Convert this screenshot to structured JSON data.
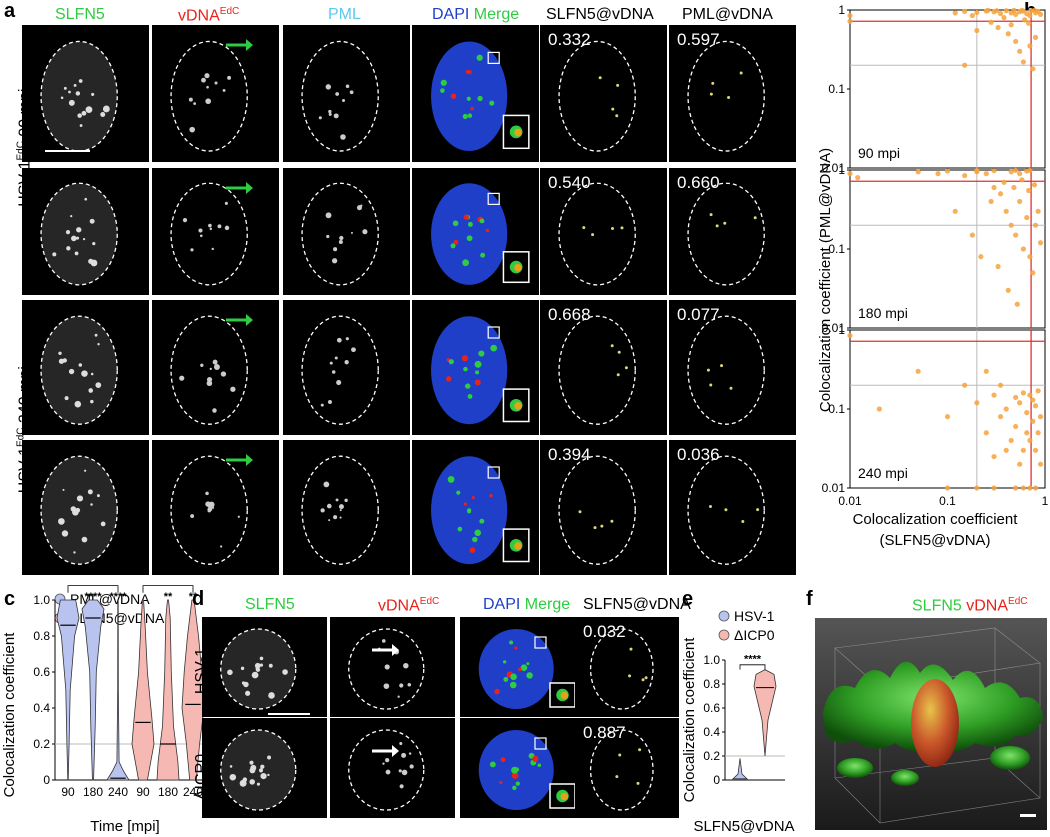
{
  "labels": {
    "a": "a",
    "b": "b",
    "c": "c",
    "d": "d",
    "e": "e",
    "f": "f"
  },
  "panel_a": {
    "headers": [
      "SLFN5",
      "vDNA",
      "PML",
      "DAPI",
      "Merge",
      "SLFN5@vDNA",
      "PML@vDNA"
    ],
    "vdna_super": "EdC",
    "colors": {
      "slfn5": "#2ecc40",
      "vdna": "#e8231b",
      "pml": "#5bc8f0",
      "dapi": "#1f3fc8",
      "merge_g": "#2ecc40",
      "merge_c": "#5bc8f0"
    },
    "group_labels": [
      {
        "pre": "HSV-1",
        "sup": "EdC",
        "post": " 90 mpi"
      },
      {
        "pre": "HSV-1",
        "sup": "EdC",
        "post": " 240 mpi"
      }
    ],
    "rows": [
      {
        "slfn5_vdna": "0.332",
        "pml_vdna": "0.597"
      },
      {
        "slfn5_vdna": "0.540",
        "pml_vdna": "0.660"
      },
      {
        "slfn5_vdna": "0.668",
        "pml_vdna": "0.077"
      },
      {
        "slfn5_vdna": "0.394",
        "pml_vdna": "0.036"
      }
    ]
  },
  "panel_b": {
    "ylabel": "Colocalization coefficient (PML@vDNA)",
    "xlabel1": "Colocalization coefficient",
    "xlabel2": "(SLFN5@vDNA)",
    "ticks_y": [
      "1",
      "0.1",
      "0.01"
    ],
    "ticks_x": [
      "0.01",
      "0.1",
      "1"
    ],
    "subplots": [
      {
        "label": "90 mpi"
      },
      {
        "label": "180 mpi"
      },
      {
        "label": "240 mpi"
      }
    ]
  },
  "panel_c": {
    "legend": [
      "PML@vDNA",
      "SLFN5@vDNA"
    ],
    "ylabel": "Colocalization coefficient",
    "xlabel": "Time [mpi]",
    "xticks": [
      "90",
      "180",
      "240",
      "90",
      "180",
      "240"
    ],
    "yticks": [
      "0",
      "0.2",
      "0.4",
      "0.6",
      "0.8",
      "1.0"
    ],
    "sig": [
      "****",
      "****",
      "**",
      "**"
    ],
    "colors": {
      "pml": "#b9c3f0",
      "slfn5": "#f5b8b3"
    }
  },
  "panel_d": {
    "headers": [
      "SLFN5",
      "vDNA",
      "DAPI",
      "Merge",
      "SLFN5@vDNA"
    ],
    "vdna_super": "EdC",
    "rows": [
      {
        "label": "HSV-1",
        "value": "0.032"
      },
      {
        "label": "ΔICP0",
        "value": "0.887"
      }
    ]
  },
  "panel_e": {
    "legend": [
      "HSV-1",
      "ΔICP0"
    ],
    "ylabel": "Colocalization coefficient",
    "xlabel": "SLFN5@vDNA",
    "yticks": [
      "0",
      "0.2",
      "0.4",
      "0.6",
      "0.8",
      "1.0"
    ],
    "sig": "****"
  },
  "panel_f": {
    "t1": "SLFN5",
    "t2": "vDNA",
    "sup": "EdC"
  },
  "chart_data": [
    {
      "type": "scatter",
      "title": "90 mpi",
      "xlabel": "Colocalization coefficient (SLFN5@vDNA)",
      "ylabel": "Colocalization coefficient (PML@vDNA)",
      "x_scale": "log",
      "y_scale": "log",
      "xlim": [
        0.01,
        1
      ],
      "ylim": [
        0.01,
        1
      ],
      "points": [
        [
          0.01,
          0.85
        ],
        [
          0.01,
          0.72
        ],
        [
          0.3,
          0.95
        ],
        [
          0.35,
          0.9
        ],
        [
          0.4,
          0.98
        ],
        [
          0.45,
          0.92
        ],
        [
          0.5,
          0.88
        ],
        [
          0.55,
          0.95
        ],
        [
          0.6,
          0.97
        ],
        [
          0.65,
          0.9
        ],
        [
          0.7,
          0.85
        ],
        [
          0.72,
          0.98
        ],
        [
          0.8,
          0.92
        ],
        [
          0.85,
          0.96
        ],
        [
          0.9,
          0.88
        ],
        [
          0.25,
          0.97
        ],
        [
          0.2,
          0.93
        ],
        [
          0.15,
          0.96
        ],
        [
          0.18,
          0.85
        ],
        [
          0.12,
          0.92
        ],
        [
          0.28,
          0.7
        ],
        [
          0.33,
          0.6
        ],
        [
          0.42,
          0.5
        ],
        [
          0.5,
          0.4
        ],
        [
          0.55,
          0.3
        ],
        [
          0.6,
          0.22
        ],
        [
          0.7,
          0.35
        ],
        [
          0.75,
          0.18
        ],
        [
          0.8,
          0.45
        ],
        [
          0.2,
          0.55
        ],
        [
          0.15,
          0.2
        ],
        [
          0.45,
          0.65
        ],
        [
          0.38,
          0.8
        ],
        [
          0.62,
          0.75
        ],
        [
          0.68,
          0.68
        ],
        [
          0.32,
          0.98
        ],
        [
          0.48,
          0.99
        ],
        [
          0.58,
          0.99
        ],
        [
          0.26,
          0.99
        ],
        [
          0.78,
          0.99
        ]
      ]
    },
    {
      "type": "scatter",
      "title": "180 mpi",
      "xlabel": "Colocalization coefficient (SLFN5@vDNA)",
      "ylabel": "Colocalization coefficient (PML@vDNA)",
      "x_scale": "log",
      "y_scale": "log",
      "xlim": [
        0.01,
        1
      ],
      "ylim": [
        0.01,
        1
      ],
      "points": [
        [
          0.01,
          0.9
        ],
        [
          0.012,
          0.8
        ],
        [
          0.05,
          0.95
        ],
        [
          0.08,
          0.9
        ],
        [
          0.1,
          0.97
        ],
        [
          0.15,
          0.85
        ],
        [
          0.2,
          0.95
        ],
        [
          0.25,
          0.9
        ],
        [
          0.3,
          0.6
        ],
        [
          0.35,
          0.5
        ],
        [
          0.4,
          0.3
        ],
        [
          0.45,
          0.2
        ],
        [
          0.5,
          0.15
        ],
        [
          0.55,
          0.4
        ],
        [
          0.6,
          0.1
        ],
        [
          0.65,
          0.25
        ],
        [
          0.7,
          0.08
        ],
        [
          0.75,
          0.05
        ],
        [
          0.8,
          0.2
        ],
        [
          0.85,
          0.3
        ],
        [
          0.9,
          0.12
        ],
        [
          0.3,
          0.98
        ],
        [
          0.45,
          0.95
        ],
        [
          0.55,
          0.9
        ],
        [
          0.65,
          0.97
        ],
        [
          0.12,
          0.3
        ],
        [
          0.18,
          0.15
        ],
        [
          0.22,
          0.08
        ],
        [
          0.28,
          0.4
        ],
        [
          0.38,
          0.7
        ],
        [
          0.48,
          0.6
        ],
        [
          0.58,
          0.75
        ],
        [
          0.68,
          0.55
        ],
        [
          0.78,
          0.65
        ],
        [
          0.42,
          0.03
        ],
        [
          0.52,
          0.02
        ],
        [
          0.33,
          0.06
        ],
        [
          0.7,
          0.99
        ],
        [
          0.5,
          0.99
        ],
        [
          0.2,
          0.99
        ]
      ]
    },
    {
      "type": "scatter",
      "title": "240 mpi",
      "xlabel": "Colocalization coefficient (SLFN5@vDNA)",
      "ylabel": "Colocalization coefficient (PML@vDNA)",
      "x_scale": "log",
      "y_scale": "log",
      "xlim": [
        0.01,
        1
      ],
      "ylim": [
        0.01,
        1
      ],
      "points": [
        [
          0.01,
          0.85
        ],
        [
          0.02,
          0.1
        ],
        [
          0.05,
          0.3
        ],
        [
          0.1,
          0.08
        ],
        [
          0.15,
          0.2
        ],
        [
          0.2,
          0.12
        ],
        [
          0.25,
          0.05
        ],
        [
          0.3,
          0.15
        ],
        [
          0.35,
          0.08
        ],
        [
          0.4,
          0.1
        ],
        [
          0.45,
          0.04
        ],
        [
          0.5,
          0.06
        ],
        [
          0.55,
          0.12
        ],
        [
          0.6,
          0.03
        ],
        [
          0.65,
          0.09
        ],
        [
          0.7,
          0.15
        ],
        [
          0.75,
          0.07
        ],
        [
          0.8,
          0.11
        ],
        [
          0.85,
          0.05
        ],
        [
          0.9,
          0.08
        ],
        [
          0.5,
          0.14
        ],
        [
          0.6,
          0.16
        ],
        [
          0.7,
          0.04
        ],
        [
          0.65,
          0.05
        ],
        [
          0.75,
          0.13
        ],
        [
          0.55,
          0.02
        ],
        [
          0.4,
          0.03
        ],
        [
          0.3,
          0.025
        ],
        [
          0.35,
          0.2
        ],
        [
          0.25,
          0.3
        ],
        [
          0.8,
          0.03
        ],
        [
          0.85,
          0.17
        ],
        [
          0.9,
          0.02
        ],
        [
          0.1,
          0.01
        ],
        [
          0.2,
          0.01
        ],
        [
          0.3,
          0.01
        ],
        [
          0.5,
          0.01
        ],
        [
          0.7,
          0.01
        ],
        [
          0.8,
          0.01
        ],
        [
          0.6,
          0.01
        ]
      ]
    },
    {
      "type": "violin",
      "ylabel": "Colocalization coefficient",
      "xlabel": "Time [mpi]",
      "categories": [
        "90",
        "180",
        "240",
        "90",
        "180",
        "240"
      ],
      "series": [
        {
          "name": "PML@vDNA",
          "groups": [
            "90",
            "180",
            "240"
          ]
        },
        {
          "name": "SLFN5@vDNA",
          "groups": [
            "90",
            "180",
            "240"
          ]
        }
      ],
      "ylim": [
        0,
        1
      ],
      "reference_line": 0.2
    },
    {
      "type": "violin",
      "ylabel": "Colocalization coefficient",
      "xlabel": "SLFN5@vDNA",
      "series": [
        {
          "name": "HSV-1"
        },
        {
          "name": "ΔICP0"
        }
      ],
      "ylim": [
        0,
        1
      ],
      "reference_line": 0.2
    }
  ]
}
